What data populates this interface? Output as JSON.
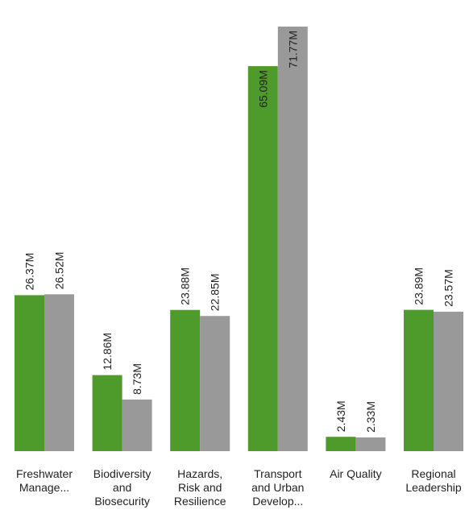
{
  "chart_data": {
    "type": "bar",
    "categories": [
      [
        "Freshwater",
        "Manage..."
      ],
      [
        "Biodiversity",
        "and",
        "Biosecurity"
      ],
      [
        "Hazards,",
        "Risk and",
        "Resilience"
      ],
      [
        "Transport",
        "and Urban",
        "Develop..."
      ],
      [
        "Air Quality"
      ],
      [
        "Regional",
        "Leadership"
      ]
    ],
    "series": [
      {
        "values": [
          26.37,
          12.86,
          23.88,
          65.09,
          2.43,
          23.89
        ],
        "labels": [
          "26.37M",
          "12.86M",
          "23.88M",
          "65.09M",
          "2.43M",
          "23.89M"
        ],
        "color": "#4e9a2a"
      },
      {
        "values": [
          26.52,
          8.73,
          22.85,
          71.77,
          2.33,
          23.57
        ],
        "labels": [
          "26.52M",
          "8.73M",
          "22.85M",
          "71.77M",
          "2.33M",
          "23.57M"
        ],
        "color": "#999999"
      }
    ],
    "ylim": [
      0,
      71.77
    ],
    "grid": false,
    "legend": "none"
  }
}
